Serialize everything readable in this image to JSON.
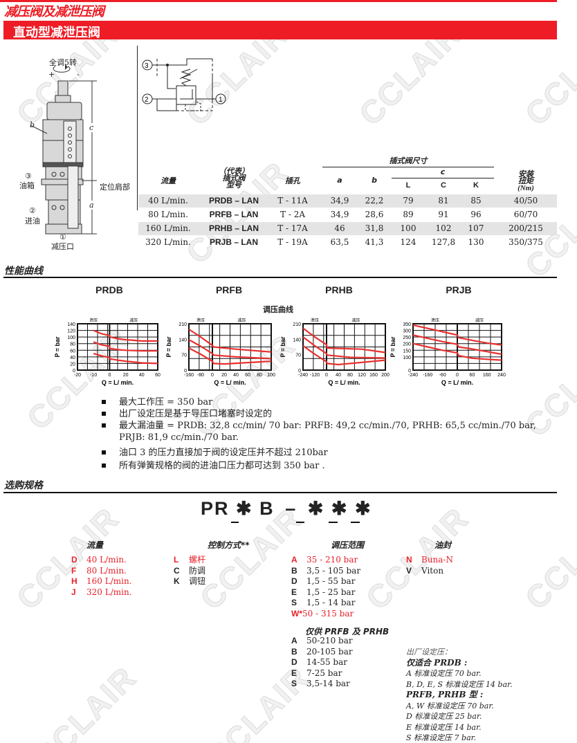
{
  "header": {
    "title": "减压阀及减泄压阀",
    "subtitle": "直动型减泄压阀"
  },
  "watermark": "CCLAIR",
  "drawing": {
    "adjust": "全调5转",
    "plus": "+",
    "minus": "-",
    "b": "b",
    "c": "c",
    "a": "a",
    "shoulder": "定位肩部",
    "port3_num": "③",
    "port3": "油箱",
    "port2_num": "②",
    "port2": "进油",
    "port1_num": "①",
    "port1": "减压口"
  },
  "symbol": {
    "p3": "3",
    "p2": "2",
    "p1": "1"
  },
  "table": {
    "group": "插式阀尺寸",
    "c_label": "c",
    "headers": {
      "flow": "流量",
      "model": "（代表）插式阀型号",
      "model_l1": "（代表）",
      "model_l2": "插式阀",
      "model_l3": "型号",
      "cavity": "插孔",
      "a": "a",
      "b": "b",
      "L": "L",
      "C": "C",
      "K": "K",
      "torque_l1": "安装",
      "torque_l2": "扭矩",
      "torque_l3": "(Nm)"
    },
    "rows": [
      {
        "flow": "40 L/min.",
        "model": "PRDB – LAN",
        "cavity": "T - 11A",
        "a": "34,9",
        "b": "22,2",
        "L": "79",
        "C": "81",
        "K": "85",
        "torque": "40/50"
      },
      {
        "flow": "80 L/min.",
        "model": "PRFB – LAN",
        "cavity": "T - 2A",
        "a": "34,9",
        "b": "28,6",
        "L": "89",
        "C": "91",
        "K": "96",
        "torque": "60/70"
      },
      {
        "flow": "160 L/min.",
        "model": "PRHB – LAN",
        "cavity": "T - 17A",
        "a": "46",
        "b": "31,8",
        "L": "100",
        "C": "102",
        "K": "107",
        "torque": "200/215"
      },
      {
        "flow": "320 L/min.",
        "model": "PRJB – LAN",
        "cavity": "T - 19A",
        "a": "63,5",
        "b": "41,3",
        "L": "124",
        "C": "127,8",
        "K": "130",
        "torque": "350/375"
      }
    ]
  },
  "performance": {
    "title": "性能曲线",
    "curve_title": "调压曲线"
  },
  "chart_data": [
    {
      "type": "line",
      "title": "PRDB",
      "xlabel": "Q = L/   min.",
      "ylabel": "P =   bar",
      "region_left": "泄压",
      "region_right": "减压",
      "xticks": [
        -20,
        -10,
        0,
        20,
        40,
        60
      ],
      "yticks": [
        0,
        20,
        40,
        60,
        80,
        100,
        120,
        140
      ],
      "ylim": [
        0,
        140
      ],
      "grid": true,
      "color": "#e8302e",
      "series": [
        {
          "x": [
            -10,
            -5,
            0,
            0.5,
            10,
            20,
            40,
            60
          ],
          "y": [
            120,
            110,
            105,
            100,
            95,
            92,
            88,
            88
          ]
        },
        {
          "x": [
            -10,
            -5,
            0,
            0.5,
            10,
            20,
            40,
            60
          ],
          "y": [
            85,
            76,
            72,
            65,
            62,
            60,
            58,
            58
          ]
        },
        {
          "x": [
            -10,
            -5,
            0,
            0.5,
            10,
            20,
            40,
            60
          ],
          "y": [
            50,
            43,
            38,
            34,
            30,
            27,
            22,
            20
          ]
        }
      ]
    },
    {
      "type": "line",
      "title": "PRFB",
      "xlabel": "Q = L/   min.",
      "ylabel": "P =   bar",
      "region_left": "泄压",
      "region_right": "减压",
      "xticks": [
        -160,
        -80,
        0,
        20,
        40,
        60,
        80,
        100
      ],
      "yticks": [
        0,
        70,
        140,
        210
      ],
      "ylim": [
        0,
        210
      ],
      "grid": true,
      "color": "#e8302e",
      "series": [
        {
          "x": [
            -160,
            -80,
            0,
            2,
            40,
            100
          ],
          "y": [
            185,
            150,
            112,
            105,
            95,
            82
          ]
        },
        {
          "x": [
            -160,
            -80,
            0,
            2,
            40,
            100
          ],
          "y": [
            138,
            108,
            75,
            68,
            60,
            52
          ]
        },
        {
          "x": [
            -160,
            -80,
            0,
            2,
            20,
            100
          ],
          "y": [
            100,
            72,
            40,
            30,
            28,
            40
          ]
        }
      ]
    },
    {
      "type": "line",
      "title": "PRHB",
      "xlabel": "Q = L/   min.",
      "ylabel": "P =   bar",
      "region_left": "泄压",
      "region_right": "减压",
      "xticks": [
        -240,
        -120,
        0,
        40,
        80,
        120,
        160,
        200
      ],
      "yticks": [
        0,
        70,
        140,
        210
      ],
      "ylim": [
        0,
        210
      ],
      "grid": true,
      "color": "#e8302e",
      "series": [
        {
          "x": [
            -240,
            -120,
            0,
            2,
            120,
            200
          ],
          "y": [
            190,
            150,
            115,
            100,
            95,
            80
          ]
        },
        {
          "x": [
            -240,
            -120,
            0,
            2,
            80,
            200
          ],
          "y": [
            150,
            110,
            75,
            68,
            58,
            55
          ]
        },
        {
          "x": [
            -240,
            -120,
            0,
            2,
            40,
            200
          ],
          "y": [
            110,
            72,
            38,
            30,
            25,
            45
          ]
        }
      ]
    },
    {
      "type": "line",
      "title": "PRJB",
      "xlabel": "Q = L/   min.",
      "ylabel": "P =   bar",
      "region_left": "泄压",
      "region_right": "减压",
      "xticks": [
        -240,
        -160,
        -60,
        0,
        60,
        160,
        240
      ],
      "yticks": [
        0,
        100,
        150,
        200,
        250,
        300,
        350
      ],
      "ylim": [
        0,
        350
      ],
      "grid": true,
      "color": "#e8302e",
      "series": [
        {
          "x": [
            -240,
            -160,
            -60,
            0,
            5,
            60,
            160,
            240
          ],
          "y": [
            340,
            315,
            290,
            265,
            245,
            225,
            205,
            190
          ]
        },
        {
          "x": [
            -240,
            -160,
            -60,
            0,
            5,
            60,
            160,
            240
          ],
          "y": [
            265,
            240,
            215,
            195,
            175,
            160,
            140,
            120
          ]
        },
        {
          "x": [
            -240,
            -160,
            -60,
            0,
            5,
            60,
            160,
            240
          ],
          "y": [
            200,
            175,
            150,
            130,
            110,
            90,
            82,
            75
          ]
        }
      ]
    }
  ],
  "notes": [
    "最大工作压 = 350 bar",
    "出厂设定压是基于导压口堵塞时设定的",
    "最大漏油量 = PRDB: 32,8 cc/min/ 70 bar: PRFB: 49,2 cc/min./70, PRHB: 65,5 cc/min./70 bar,",
    "PRJB: 81,9 cc/min./70 bar.",
    "油口 3 的压力直接加于阀的设定压并不超过 210bar",
    "所有弹簧规格的阀的进油口压力都可达到 350 bar ."
  ],
  "ordering": {
    "title": "选购规格",
    "code": [
      "PR",
      "✱",
      "B",
      "–",
      "✱",
      "✱",
      "✱"
    ],
    "flow": {
      "title": "流量",
      "items": [
        {
          "k": "D",
          "v": "40 L/min."
        },
        {
          "k": "F",
          "v": "80 L/min."
        },
        {
          "k": "H",
          "v": "160 L/min."
        },
        {
          "k": "J",
          "v": "320 L/min."
        }
      ]
    },
    "control": {
      "title": "控制方式**",
      "items": [
        {
          "k": "L",
          "v": "螺杆"
        },
        {
          "k": "C",
          "v": "防调"
        },
        {
          "k": "K",
          "v": "调钮"
        }
      ]
    },
    "range": {
      "title": "调压范围",
      "items": [
        {
          "k": "A",
          "v": "35 - 210 bar"
        },
        {
          "k": "B",
          "v": "3,5 - 105 bar"
        },
        {
          "k": "D",
          "v": "1,5 - 55 bar"
        },
        {
          "k": "E",
          "v": "1,5 - 25 bar"
        },
        {
          "k": "S",
          "v": "1,5 - 14 bar"
        },
        {
          "k": "W*",
          "v": "50 - 315 bar"
        }
      ],
      "sub_title": "仅供 PRFB 及 PRHB",
      "sub_items": [
        {
          "k": "A",
          "v": "50-210 bar"
        },
        {
          "k": "B",
          "v": "20-105 bar"
        },
        {
          "k": "D",
          "v": "14-55 bar"
        },
        {
          "k": "E",
          "v": "7-25 bar"
        },
        {
          "k": "S",
          "v": "3,5-14 bar"
        }
      ]
    },
    "seal": {
      "title": "油封",
      "items": [
        {
          "k": "N",
          "v": "Buna-N"
        },
        {
          "k": "V",
          "v": "Viton"
        }
      ]
    },
    "factory": [
      "出厂设定压：",
      "仅适合 PRDB :",
      "A 标准设定压 70 bar.",
      "B, D, E, S 标准设定压 14 bar.",
      "PRFB, PRHB 型 :",
      "A, W 标准设定压 70 bar.",
      "D 标准设定压 25 bar.",
      "E 标准设定压 14 bar.",
      "S 标准设定压 7 bar."
    ],
    "highlight_color": "#e8202a"
  }
}
